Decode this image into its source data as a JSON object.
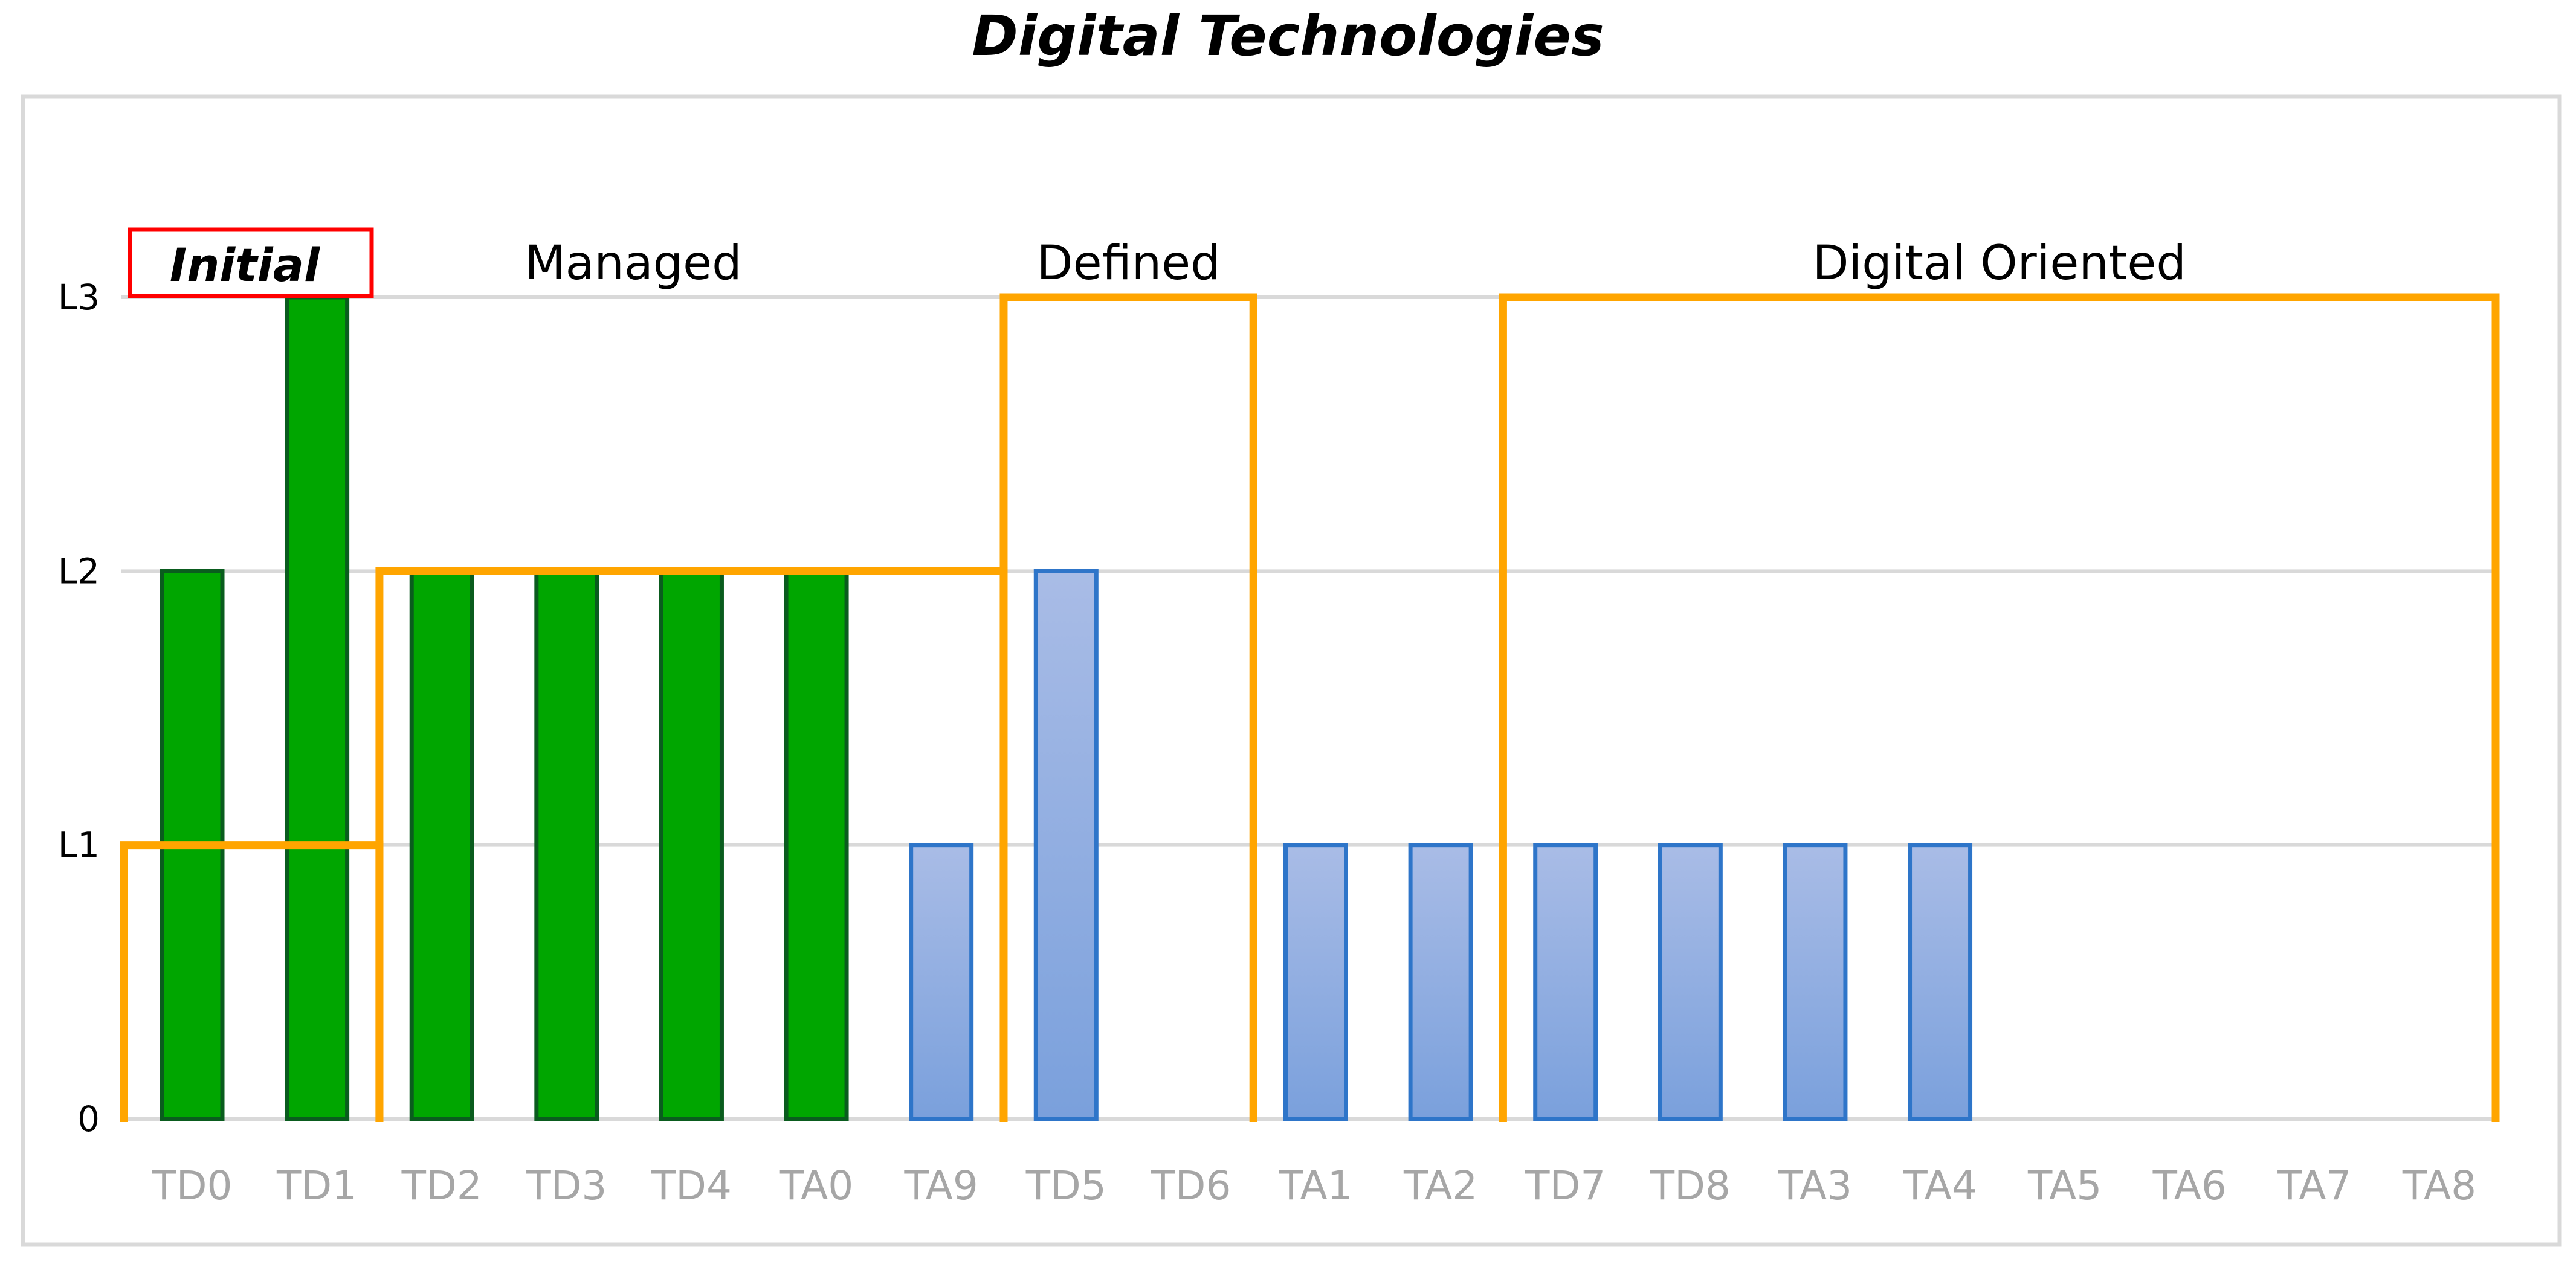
{
  "chart_data": {
    "type": "bar",
    "title": "Digital Technologies",
    "categories": [
      "TD0",
      "TD1",
      "TD2",
      "TD3",
      "TD4",
      "TA0",
      "TA9",
      "TD5",
      "TD6",
      "TA1",
      "TA2",
      "TD7",
      "TD8",
      "TA3",
      "TA4",
      "TA5",
      "TA6",
      "TA7",
      "TA8"
    ],
    "values": [
      2,
      3,
      2,
      2,
      2,
      2,
      1,
      2,
      0,
      1,
      1,
      1,
      1,
      1,
      1,
      0,
      0,
      0,
      0
    ],
    "bar_groups": [
      "green",
      "green",
      "green",
      "green",
      "green",
      "green",
      "blue",
      "blue",
      "blue",
      "blue",
      "blue",
      "blue",
      "blue",
      "blue",
      "blue",
      "blue",
      "blue",
      "blue",
      "blue"
    ],
    "y_tick_labels": [
      "0",
      "L1",
      "L2",
      "L3"
    ],
    "ylim": [
      0,
      3
    ],
    "grid": true,
    "xlabel": "",
    "ylabel": "",
    "zones": [
      {
        "label": "Initial",
        "level": 1,
        "from_category": "TD0",
        "to_category": "TD1",
        "highlighted": true
      },
      {
        "label": "Managed",
        "level": 2,
        "from_category": "TD2",
        "to_category": "TA9"
      },
      {
        "label": "Defined",
        "level": 3,
        "from_category": "TD5",
        "to_category": "TD6"
      },
      {
        "label": "Digital Oriented",
        "level": 3,
        "from_category": "TD7",
        "to_category": "TA8"
      }
    ],
    "colors": {
      "green_fill": "#00a600",
      "green_stroke": "#0a5c1e",
      "blue_fill_top": "#a9bce6",
      "blue_fill_bottom": "#7aa0dc",
      "blue_stroke": "#2e75c9",
      "zone_line": "#ffa500",
      "initial_box": "#ff0000",
      "gridline": "#d9d9d9",
      "x_tick_text": "#a6a6a6"
    }
  }
}
